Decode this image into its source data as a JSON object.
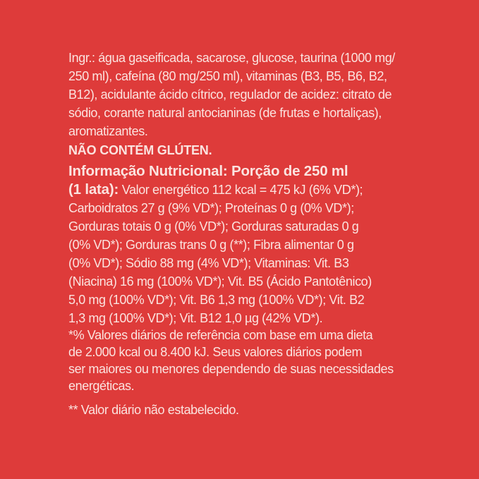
{
  "ingredients": [
    "Ingr.: água gaseificada, sacarose, glucose, taurina (1000 mg/",
    "250 ml), cafeína (80 mg/250 ml), vitaminas (B3, B5, B6, B2,",
    "B12), acidulante ácido cítrico, regulador de acidez: citrato de",
    "sódio, corante natural antocianinas (de frutas e hortaliças),",
    "aromatizantes."
  ],
  "gluten_warning": "NÃO CONTÉM GLÚTEN.",
  "nutrition": {
    "heading": "Informação Nutricional: Porção de 250 ml",
    "heading_cont": "(1 lata):",
    "lines": [
      "Valor energético 112 kcal = 475 kJ (6% VD*);",
      "Carboidratos 27 g (9% VD*); Proteínas 0 g (0% VD*);",
      "Gorduras totais 0 g (0% VD*); Gorduras saturadas 0 g",
      "(0% VD*); Gorduras trans 0 g (**); Fibra alimentar 0 g",
      "(0% VD*); Sódio 88 mg (4% VD*); Vitaminas: Vit. B3",
      "(Niacina) 16 mg (100% VD*); Vit. B5 (Ácido Pantotênico)",
      "5,0 mg (100% VD*); Vit. B6 1,3 mg (100% VD*); Vit. B2",
      "1,3 mg (100% VD*); Vit. B12 1,0 µg (42% VD*)."
    ]
  },
  "footnotes": [
    "*% Valores diários de referência com base em uma dieta",
    "de 2.000 kcal ou 8.400 kJ. Seus valores diários podem",
    "ser maiores ou menores dependendo de suas necessidades",
    "energéticas.",
    "** Valor diário não estabelecido."
  ],
  "colors": {
    "background": "#de3b3a",
    "text": "#fbe3df"
  }
}
